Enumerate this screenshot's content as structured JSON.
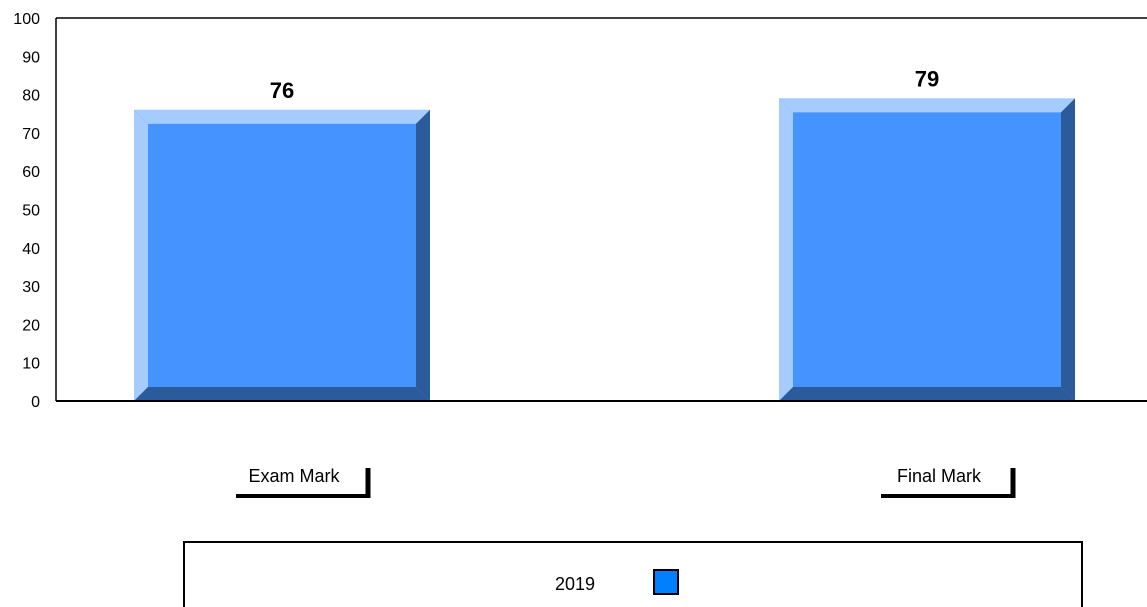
{
  "chart_data": {
    "type": "bar",
    "categories": [
      "Exam Mark",
      "Final Mark"
    ],
    "series": [
      {
        "name": "2019",
        "values": [
          76,
          79
        ],
        "color": "#4593ff"
      }
    ],
    "data_labels": [
      "76",
      "79"
    ],
    "ylim": [
      0,
      100
    ],
    "y_ticks": [
      0,
      10,
      20,
      30,
      40,
      50,
      60,
      70,
      80,
      90,
      100
    ],
    "grid": false,
    "legend_position": "bottom",
    "style": "3d-bevel"
  },
  "legend": {
    "label": "2019",
    "color": "#0080ff"
  }
}
